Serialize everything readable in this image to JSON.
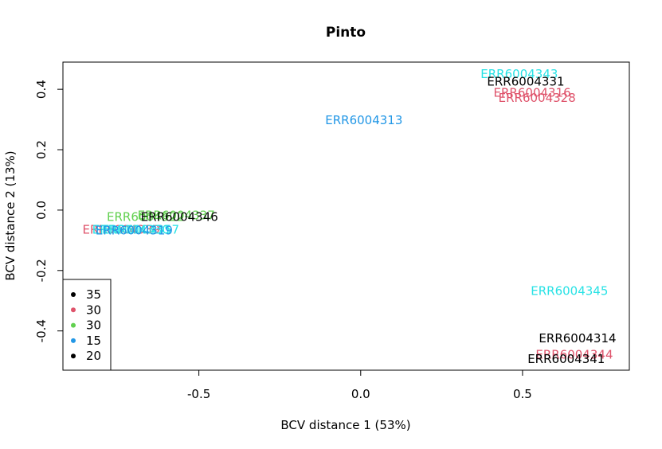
{
  "chart_data": {
    "type": "scatter",
    "title": "Pinto",
    "xlabel": "BCV distance 1 (53%)",
    "ylabel": "BCV distance 2 (13%)",
    "xlim": [
      -0.92,
      0.83
    ],
    "ylim": [
      -0.53,
      0.49
    ],
    "xticks": [
      -0.5,
      0.0,
      0.5
    ],
    "xtick_labels": [
      "-0.5",
      "0.0",
      "0.5"
    ],
    "yticks": [
      -0.4,
      -0.2,
      0.0,
      0.2,
      0.4
    ],
    "ytick_labels": [
      "-0.4",
      "-0.2",
      "0.0",
      "0.2",
      "0.4"
    ],
    "grid": false,
    "colors": {
      "black": "#000000",
      "red": "#DF536B",
      "green": "#61D04F",
      "blue": "#2297E6",
      "cyan": "#28E2E5"
    },
    "points": [
      {
        "label": "ERR6004343",
        "x": 0.49,
        "y": 0.45,
        "color": "#28E2E5"
      },
      {
        "label": "ERR6004331",
        "x": 0.51,
        "y": 0.425,
        "color": "#000000"
      },
      {
        "label": "ERR6004316",
        "x": 0.53,
        "y": 0.388,
        "color": "#DF536B"
      },
      {
        "label": "ERR6004328",
        "x": 0.545,
        "y": 0.372,
        "color": "#DF536B"
      },
      {
        "label": "ERR6004313",
        "x": 0.01,
        "y": 0.298,
        "color": "#2297E6"
      },
      {
        "label": "ERR6004337",
        "x": -0.57,
        "y": -0.018,
        "color": "#61D04F"
      },
      {
        "label": "ERR6004322",
        "x": -0.665,
        "y": -0.022,
        "color": "#61D04F"
      },
      {
        "label": "ERR6004346",
        "x": -0.56,
        "y": -0.022,
        "color": "#000000"
      },
      {
        "label": "ERR6004339",
        "x": -0.74,
        "y": -0.065,
        "color": "#DF536B"
      },
      {
        "label": "ERR6004330",
        "x": -0.71,
        "y": -0.065,
        "color": "#28E2E5"
      },
      {
        "label": "ERR6004357",
        "x": -0.68,
        "y": -0.065,
        "color": "#28E2E5"
      },
      {
        "label": "ERR6004319",
        "x": -0.7,
        "y": -0.068,
        "color": "#2297E6"
      },
      {
        "label": "ERR6004345",
        "x": 0.645,
        "y": -0.268,
        "color": "#28E2E5"
      },
      {
        "label": "ERR6004314",
        "x": 0.67,
        "y": -0.425,
        "color": "#000000"
      },
      {
        "label": "ERR6004344",
        "x": 0.66,
        "y": -0.478,
        "color": "#DF536B"
      },
      {
        "label": "ERR6004341",
        "x": 0.635,
        "y": -0.493,
        "color": "#000000"
      }
    ],
    "legend": {
      "position": "bottom-left",
      "items": [
        {
          "label": "35",
          "color": "#000000"
        },
        {
          "label": "30",
          "color": "#DF536B"
        },
        {
          "label": "30",
          "color": "#61D04F"
        },
        {
          "label": "15",
          "color": "#2297E6"
        },
        {
          "label": "20",
          "color": "#000000"
        }
      ]
    }
  }
}
